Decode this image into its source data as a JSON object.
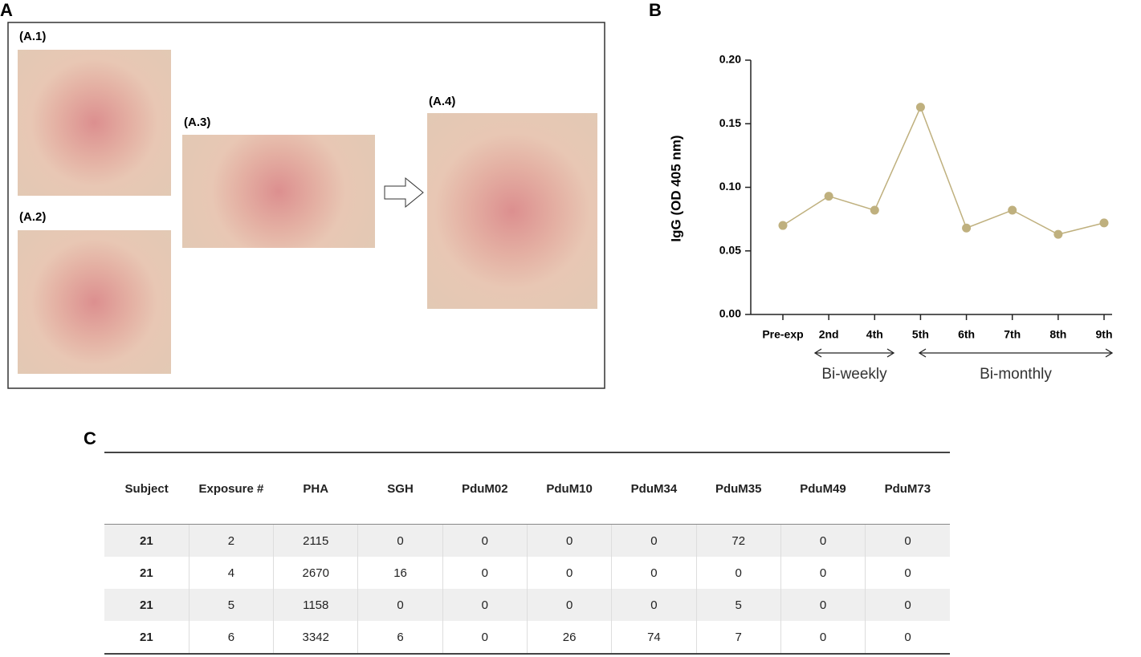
{
  "panel_labels": [
    "A",
    "B",
    "C"
  ],
  "photos": [
    "(A.1)",
    "(A.2)",
    "(A.3)",
    "(A.4)"
  ],
  "chart_data": {
    "type": "line",
    "y_label": "IgG (OD 405 nm)",
    "categories": [
      "Pre-exp",
      "2nd",
      "4th",
      "5th",
      "6th",
      "7th",
      "8th",
      "9th"
    ],
    "values": [
      0.07,
      0.093,
      0.082,
      0.163,
      0.068,
      0.082,
      0.063,
      0.072
    ],
    "color": "#bfb07e",
    "ylim": [
      0,
      0.2
    ],
    "yticks": [
      {
        "value": 0,
        "label": "0.00"
      },
      0.05,
      {
        "value": 0.1,
        "label": "0.10"
      },
      0.15,
      {
        "value": 0.2,
        "label": "0.20"
      }
    ],
    "grid": false,
    "annotations": [
      "Bi-weekly",
      "Bi-monthly"
    ]
  },
  "table": {
    "header": [
      "Subject",
      "Exposure #",
      "PHA",
      "SGH",
      "PduM02",
      "PduM10",
      "PduM34",
      "PduM35",
      "PduM49",
      "PduM73"
    ],
    "rows": [
      [
        21,
        2,
        2115,
        0,
        0,
        0,
        0,
        72,
        0,
        0
      ],
      [
        21,
        4,
        2670,
        16,
        0,
        0,
        0,
        0,
        0,
        0
      ],
      [
        21,
        5,
        1158,
        0,
        0,
        0,
        0,
        5,
        0,
        0
      ],
      [
        21,
        6,
        3342,
        6,
        0,
        26,
        74,
        7,
        0,
        0
      ]
    ]
  }
}
